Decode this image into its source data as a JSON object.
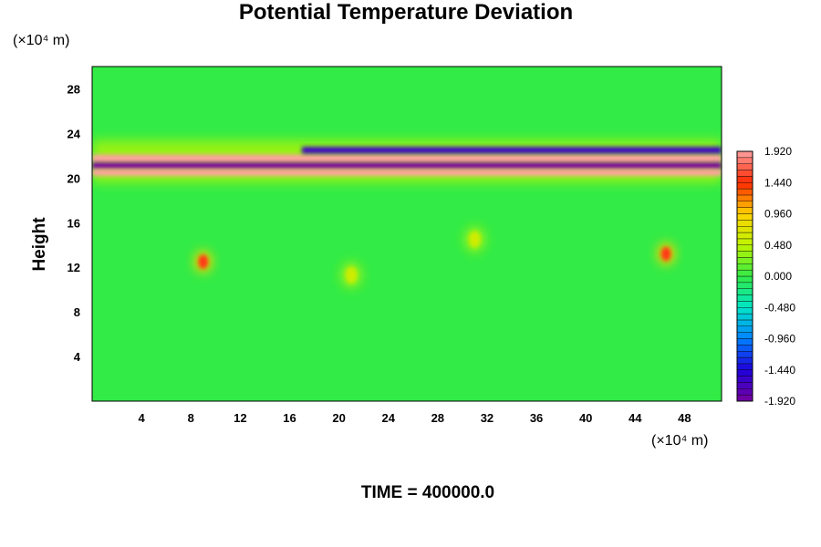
{
  "title": "Potential Temperature Deviation",
  "footer": "TIME = 400000.0",
  "chart_data": {
    "type": "heatmap",
    "title": "Potential Temperature Deviation",
    "ylabel": "Height",
    "xlabel": "",
    "x_unit_label": "(×10⁴ m)",
    "y_unit_label": "(×10⁴ m)",
    "xlim": [
      0,
      51
    ],
    "ylim": [
      0,
      30
    ],
    "x_ticks": [
      4,
      8,
      12,
      16,
      20,
      24,
      28,
      32,
      36,
      40,
      44,
      48
    ],
    "y_ticks": [
      4,
      8,
      12,
      16,
      20,
      24,
      28
    ],
    "colorbar": {
      "range": [
        -1.92,
        1.92
      ],
      "tick_labels": [
        "1.920",
        "1.440",
        "0.960",
        "0.480",
        "0.000",
        "-0.480",
        "-0.960",
        "-1.440",
        "-1.920"
      ],
      "tick_values": [
        1.92,
        1.44,
        0.96,
        0.48,
        0.0,
        -0.48,
        -0.96,
        -1.44,
        -1.92
      ]
    },
    "features": [
      {
        "description": "warm layer band",
        "x": [
          0,
          51
        ],
        "y": [
          21.4,
          22.1
        ],
        "value": 1.92
      },
      {
        "description": "cold layer band",
        "x": [
          0,
          51
        ],
        "y": [
          20.8,
          21.4
        ],
        "value": -1.92
      },
      {
        "description": "warm layer band",
        "x": [
          0,
          51
        ],
        "y": [
          20.2,
          20.8
        ],
        "value": 1.92
      },
      {
        "description": "upper cold filament",
        "x": [
          17,
          51
        ],
        "y": [
          22.2,
          22.8
        ],
        "value": -1.6
      },
      {
        "description": "warm plume",
        "x": 9,
        "y": 12.5,
        "value": 1.5
      },
      {
        "description": "warm plume",
        "x": 46.5,
        "y": 13.2,
        "value": 1.5
      },
      {
        "description": "weak warm patch",
        "x": 31,
        "y": 14.5,
        "value": 0.6
      },
      {
        "description": "weak warm patch",
        "x": 21,
        "y": 11.3,
        "value": 0.6
      }
    ]
  }
}
